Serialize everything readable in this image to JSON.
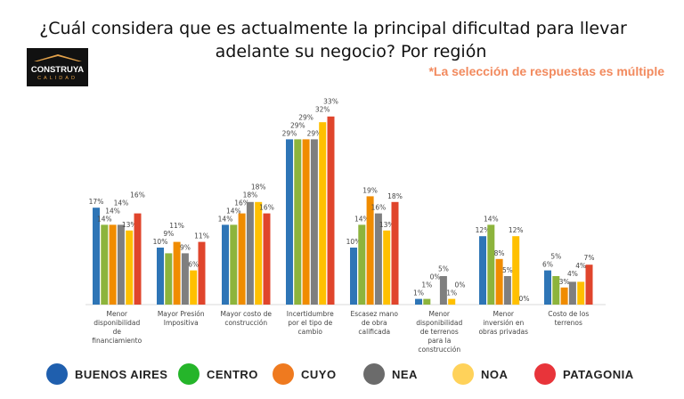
{
  "header": {
    "title_line1": "¿Cuál considera que es actualmente la principal dificultad para llevar",
    "title_line2": "adelante su negocio? Por región",
    "note": "*La selección de respuestas es múltiple",
    "logo_text": "CONSTRUYA",
    "logo_subtext": "CALIDAD"
  },
  "chart_data": {
    "type": "bar",
    "categories": [
      "Menor disponibilidad de financiamiento",
      "Mayor Presión Impositiva",
      "Mayor costo de construcción",
      "Incertidumbre por el tipo de cambio",
      "Escasez mano de obra calificada",
      "Menor disponibilidad de terrenos para la construcción",
      "Menor inversión en obras privadas",
      "Costo de los terrenos"
    ],
    "series": [
      {
        "name": "BUENOS AIRES",
        "color": "#2e75b6",
        "legend_color": "#1f5fae",
        "values": [
          17,
          10,
          14,
          29,
          10,
          1,
          12,
          6
        ]
      },
      {
        "name": "CENTRO",
        "color": "#8db43c",
        "legend_color": "#25b52a",
        "values": [
          14,
          9,
          14,
          29,
          14,
          1,
          14,
          5
        ]
      },
      {
        "name": "CUYO",
        "color": "#f08c00",
        "legend_color": "#ef7a1f",
        "values": [
          14,
          11,
          16,
          29,
          19,
          0,
          8,
          3
        ]
      },
      {
        "name": "NEA",
        "color": "#7f7f7f",
        "legend_color": "#6b6b6b",
        "values": [
          14,
          9,
          18,
          29,
          16,
          5,
          5,
          4
        ]
      },
      {
        "name": "NOA",
        "color": "#ffc000",
        "legend_color": "#ffd25a",
        "values": [
          13,
          6,
          18,
          32,
          13,
          1,
          12,
          4
        ]
      },
      {
        "name": "PATAGONIA",
        "color": "#e0452c",
        "legend_color": "#e8343a",
        "values": [
          16,
          11,
          16,
          33,
          18,
          0,
          0,
          7
        ]
      }
    ],
    "value_suffix": "%",
    "ylim": [
      0,
      35
    ],
    "grid": false,
    "legend_position": "bottom"
  }
}
